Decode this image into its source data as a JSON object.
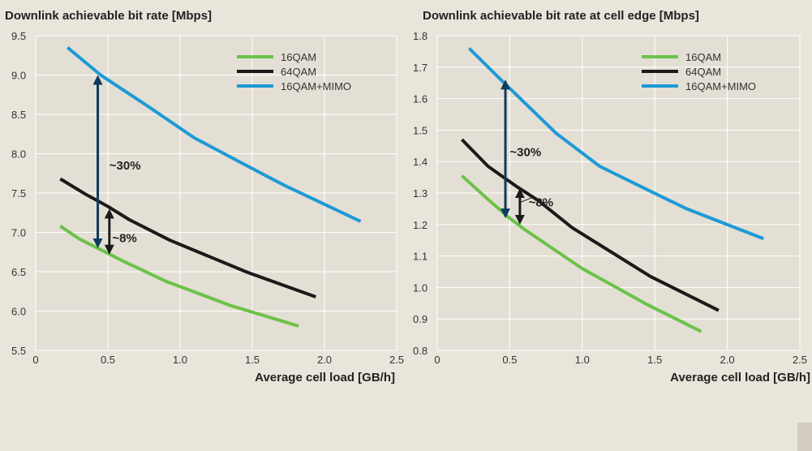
{
  "colors": {
    "green": "#6cc24a",
    "black": "#1a1a1a",
    "blue": "#1e9ad6",
    "arrow_navy": "#0d3b5e",
    "grid": "#ffffff",
    "background": "#eae5db"
  },
  "chart_data": [
    {
      "type": "line",
      "title": "Downlink achievable bit rate [Mbps]",
      "xlabel": "Average cell load [GB/h]",
      "ylabel": "",
      "xlim": [
        0,
        2.5
      ],
      "ylim": [
        5.5,
        9.5
      ],
      "xticks": [
        "0",
        "0.5",
        "1.0",
        "1.5",
        "2.0",
        "2.5"
      ],
      "xtick_values": [
        0,
        0.5,
        1.0,
        1.5,
        2.0,
        2.5
      ],
      "yticks": [
        "5.5",
        "6.0",
        "6.5",
        "7.0",
        "7.5",
        "8.0",
        "8.5",
        "9.0",
        "9.5"
      ],
      "ytick_values": [
        5.5,
        6.0,
        6.5,
        7.0,
        7.5,
        8.0,
        8.5,
        9.0,
        9.5
      ],
      "grid": true,
      "legend_position": "top-right",
      "series": [
        {
          "name": "16QAM",
          "color": "#6cc24a",
          "x": [
            0.17,
            0.3,
            0.45,
            0.6,
            0.9,
            1.35,
            1.82
          ],
          "y": [
            7.08,
            6.92,
            6.78,
            6.64,
            6.38,
            6.07,
            5.81
          ]
        },
        {
          "name": "64QAM",
          "color": "#1a1a1a",
          "x": [
            0.17,
            0.35,
            0.5,
            0.65,
            0.93,
            1.47,
            1.94
          ],
          "y": [
            7.68,
            7.48,
            7.33,
            7.16,
            6.9,
            6.49,
            6.18
          ]
        },
        {
          "name": "16QAM+MIMO",
          "color": "#1e9ad6",
          "x": [
            0.22,
            0.45,
            0.78,
            1.1,
            1.45,
            1.72,
            2.25
          ],
          "y": [
            9.35,
            9.0,
            8.6,
            8.2,
            7.86,
            7.6,
            7.14
          ]
        }
      ],
      "annotations": [
        {
          "text": "~30%",
          "arrow_x": 0.43,
          "y_from": 6.82,
          "y_to": 8.98,
          "label_x": 0.51,
          "label_y": 7.85,
          "color": "#0d3b5e"
        },
        {
          "text": "~8%",
          "arrow_x": 0.51,
          "y_from": 6.74,
          "y_to": 7.28,
          "label_x": 0.53,
          "label_y": 6.93,
          "color": "#1a1a1a"
        }
      ]
    },
    {
      "type": "line",
      "title": "Downlink achievable bit rate at cell edge [Mbps]",
      "xlabel": "Average cell load [GB/h]",
      "ylabel": "",
      "xlim": [
        0,
        2.5
      ],
      "ylim": [
        0.8,
        1.8
      ],
      "xticks": [
        "0",
        "0.5",
        "1.0",
        "1.5",
        "2.0",
        "2.5"
      ],
      "xtick_values": [
        0,
        0.5,
        1.0,
        1.5,
        2.0,
        2.5
      ],
      "yticks": [
        "0.8",
        "0.9",
        "1.0",
        "1.1",
        "1.2",
        "1.3",
        "1.4",
        "1.5",
        "1.6",
        "1.7",
        "1.8"
      ],
      "ytick_values": [
        0.8,
        0.9,
        1.0,
        1.1,
        1.2,
        1.3,
        1.4,
        1.5,
        1.6,
        1.7,
        1.8
      ],
      "grid": true,
      "legend_position": "top-right",
      "series": [
        {
          "name": "16QAM",
          "color": "#6cc24a",
          "x": [
            0.17,
            0.35,
            0.5,
            0.6,
            1.0,
            1.45,
            1.82
          ],
          "y": [
            1.355,
            1.28,
            1.22,
            1.185,
            1.06,
            0.945,
            0.86
          ]
        },
        {
          "name": "64QAM",
          "color": "#1a1a1a",
          "x": [
            0.17,
            0.35,
            0.55,
            0.7,
            0.93,
            1.47,
            1.94
          ],
          "y": [
            1.47,
            1.385,
            1.32,
            1.275,
            1.19,
            1.035,
            0.927
          ]
        },
        {
          "name": "16QAM+MIMO",
          "color": "#1e9ad6",
          "x": [
            0.22,
            0.45,
            0.82,
            1.12,
            1.45,
            1.72,
            2.25
          ],
          "y": [
            1.76,
            1.655,
            1.49,
            1.385,
            1.31,
            1.25,
            1.155
          ]
        }
      ],
      "annotations": [
        {
          "text": "~30%",
          "arrow_x": 0.47,
          "y_from": 1.225,
          "y_to": 1.655,
          "label_x": 0.5,
          "label_y": 1.43,
          "color": "#0d3b5e"
        },
        {
          "text": "~8%",
          "arrow_x": 0.57,
          "y_from": 1.205,
          "y_to": 1.31,
          "label_x": 0.63,
          "label_y": 1.27,
          "color": "#1a1a1a",
          "leader_from_x": 0.57,
          "leader_from_y": 1.27,
          "leader_to_x": 0.65,
          "leader_to_y": 1.285
        }
      ]
    }
  ]
}
